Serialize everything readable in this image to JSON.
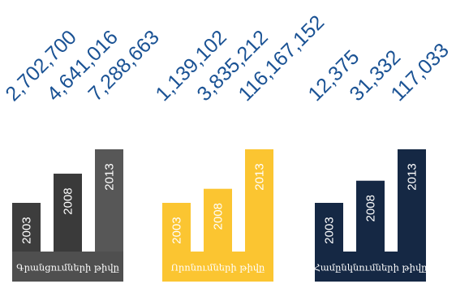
{
  "chart_data": {
    "type": "bar",
    "categories": [
      "2003",
      "2008",
      "2013"
    ],
    "colors": {
      "value_text": "#1a5294",
      "label_text": "#ffffff"
    },
    "charts": [
      {
        "caption": "Գրանցումների թիվը",
        "color": "#4f4f4f",
        "bar_colors": [
          "#3d3d3d",
          "#3a3a3a",
          "#575757"
        ],
        "values": [
          2702700,
          4641016,
          7288663
        ],
        "value_labels": [
          "2,702,700",
          "4,641,016",
          "7,288,663"
        ]
      },
      {
        "caption": "Որոնումների թիվը",
        "color": "#fbc531",
        "bar_colors": [
          "#fbc531",
          "#fbc531",
          "#fbc531"
        ],
        "values": [
          1139102,
          3835212,
          116167152
        ],
        "value_labels": [
          "1,139,102",
          "3,835,212",
          "116,167,152"
        ]
      },
      {
        "caption": "Համընկնումների թիվը",
        "color": "#152844",
        "bar_colors": [
          "#152844",
          "#152844",
          "#152844"
        ],
        "values": [
          12375,
          31332,
          117033
        ],
        "value_labels": [
          "12,375",
          "31,332",
          "117,033"
        ]
      }
    ]
  }
}
